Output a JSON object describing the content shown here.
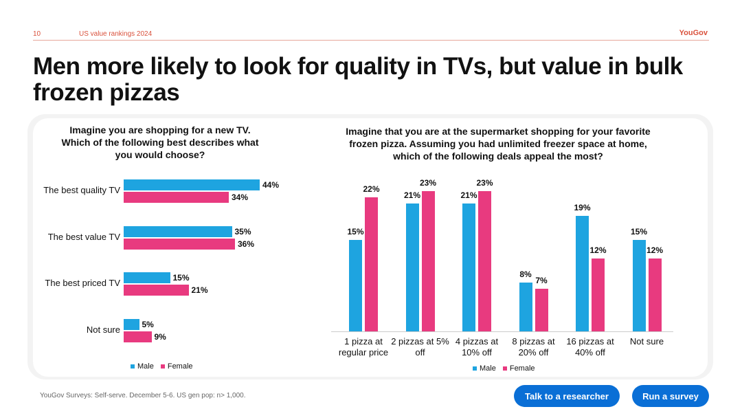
{
  "header": {
    "page_number": "10",
    "section": "US value rankings 2024",
    "brand": "YouGov"
  },
  "title": "Men more likely to look for quality in TVs, but value in bulk frozen pizzas",
  "colors": {
    "male": "#1ea4e0",
    "female": "#e83a7f"
  },
  "chart_data": [
    {
      "type": "bar",
      "orientation": "horizontal",
      "title": "Imagine you are shopping for a new TV. Which of the following best describes what you would choose?",
      "categories": [
        "The best quality TV",
        "The best value TV",
        "The best priced TV",
        "Not sure"
      ],
      "series": [
        {
          "name": "Male",
          "values": [
            44,
            35,
            15,
            5
          ]
        },
        {
          "name": "Female",
          "values": [
            34,
            36,
            21,
            9
          ]
        }
      ],
      "labels": {
        "Male": [
          "44%",
          "35%",
          "15%",
          "5%"
        ],
        "Female": [
          "34%",
          "36%",
          "21%",
          "9%"
        ]
      },
      "legend": "bottom",
      "xlim": [
        0,
        50
      ]
    },
    {
      "type": "bar",
      "orientation": "vertical",
      "title": "Imagine that you are at the supermarket shopping for your favorite frozen pizza. Assuming you had unlimited freezer space at home, which of the following deals appeal the most?",
      "categories": [
        "1 pizza at regular price",
        "2 pizzas at 5% off",
        "4 pizzas at 10% off",
        "8 pizzas at 20% off",
        "16 pizzas at 40% off",
        "Not sure"
      ],
      "series": [
        {
          "name": "Male",
          "values": [
            15,
            21,
            21,
            8,
            19,
            15
          ]
        },
        {
          "name": "Female",
          "values": [
            22,
            23,
            23,
            7,
            12,
            12
          ]
        }
      ],
      "labels": {
        "Male": [
          "15%",
          "21%",
          "21%",
          "8%",
          "19%",
          "15%"
        ],
        "Female": [
          "22%",
          "23%",
          "23%",
          "7%",
          "12%",
          "12%"
        ]
      },
      "legend": "bottom",
      "ylim": [
        0,
        25
      ]
    }
  ],
  "footer": {
    "source": "YouGov Surveys: Self-serve. December 5-6. US gen pop: n> 1,000."
  },
  "buttons": {
    "talk": "Talk to a researcher",
    "run": "Run a survey"
  }
}
